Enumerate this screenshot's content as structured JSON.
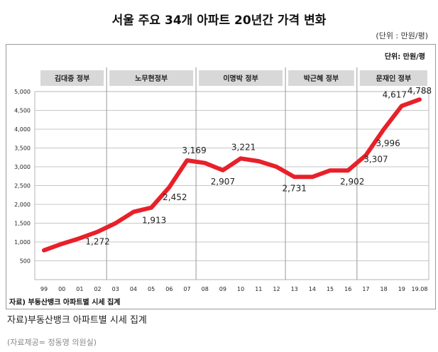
{
  "title": "서울 주요 34개 아파트 20년간 가격 변화",
  "unit_outer": "(단위 : 만원/평)",
  "unit_inner": "단위: 만원/평",
  "source_inner": "자료) 부동산뱅크 아파트별 시세 집계",
  "source_outer": "자료)부동산뱅크 아파트별 시세 집계",
  "credit": "(자료제공= 정동영 의원실)",
  "colors": {
    "line": "#e8202a",
    "grid": "#b5b5b5",
    "band": "#d8d8d8"
  },
  "chart_data": {
    "type": "line",
    "title": "서울 주요 34개 아파트 20년간 가격 변화",
    "ylabel": "",
    "xlabel": "",
    "ylim": [
      0,
      5000
    ],
    "yticks": [
      "500",
      "1,000",
      "1,500",
      "2,000",
      "2,500",
      "3,000",
      "3,500",
      "4,000",
      "4,500",
      "5,000"
    ],
    "ytick_values": [
      500,
      1000,
      1500,
      2000,
      2500,
      3000,
      3500,
      4000,
      4500,
      5000
    ],
    "categories": [
      "99",
      "00",
      "01",
      "02",
      "03",
      "04",
      "05",
      "06",
      "07",
      "08",
      "09",
      "10",
      "11",
      "12",
      "13",
      "14",
      "15",
      "16",
      "17",
      "18",
      "19",
      "19.08"
    ],
    "values": [
      780,
      950,
      1100,
      1272,
      1500,
      1800,
      1913,
      2452,
      3169,
      3100,
      2907,
      3221,
      3150,
      3000,
      2731,
      2731,
      2902,
      2902,
      3307,
      3996,
      4617,
      4788
    ],
    "data_labels": [
      {
        "index": 3,
        "text": "1,272"
      },
      {
        "index": 6,
        "text": "1,913"
      },
      {
        "index": 7,
        "text": "2,452"
      },
      {
        "index": 8,
        "text": "3,169"
      },
      {
        "index": 10,
        "text": "2,907"
      },
      {
        "index": 11,
        "text": "3,221"
      },
      {
        "index": 14,
        "text": "2,731"
      },
      {
        "index": 17,
        "text": "2,902"
      },
      {
        "index": 18,
        "text": "3,307"
      },
      {
        "index": 19,
        "text": "3,996"
      },
      {
        "index": 20,
        "text": "4,617"
      },
      {
        "index": 21,
        "text": "4,788"
      }
    ],
    "periods": [
      {
        "name": "김대중 정부",
        "start": 0,
        "end": 4
      },
      {
        "name": "노무현정부",
        "start": 4,
        "end": 9
      },
      {
        "name": "이명박 정부",
        "start": 9,
        "end": 14
      },
      {
        "name": "박근혜 정부",
        "start": 14,
        "end": 18
      },
      {
        "name": "문재인 정부",
        "start": 18,
        "end": 21
      }
    ],
    "grid": true,
    "legend": "none"
  }
}
